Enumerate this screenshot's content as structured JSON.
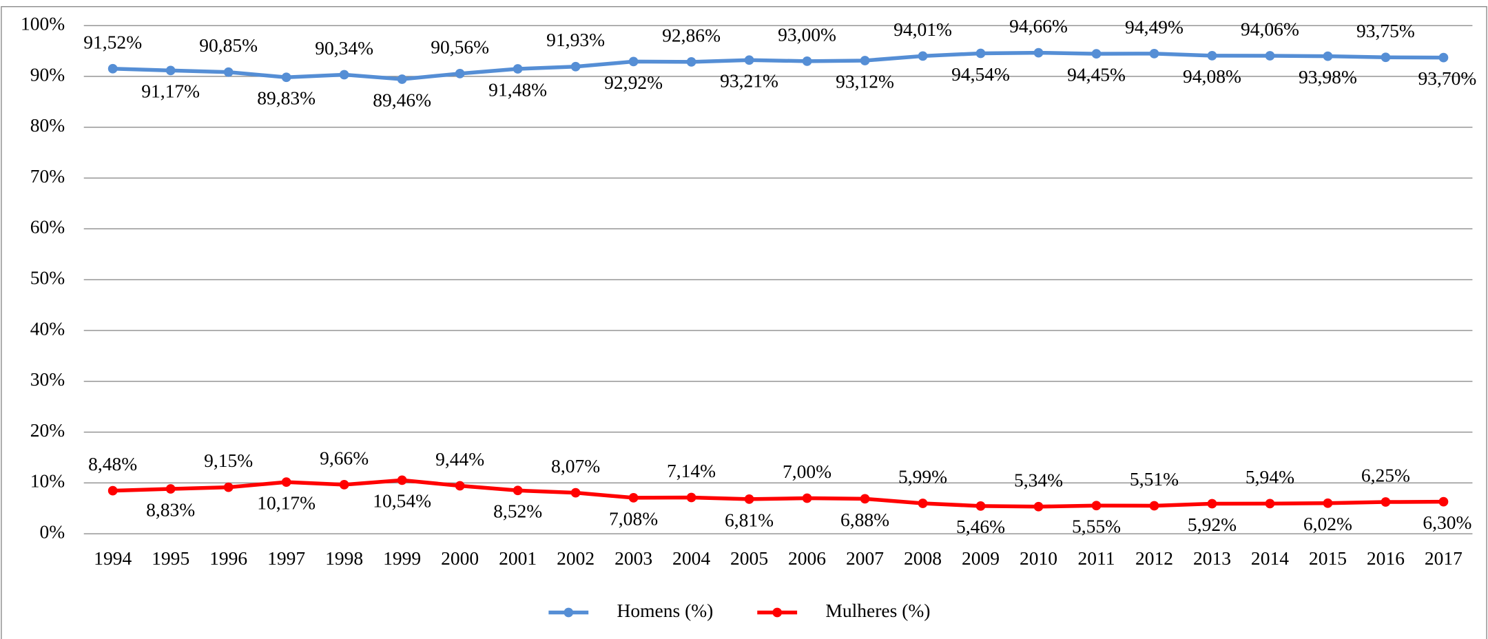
{
  "chart_data": {
    "type": "line",
    "categories": [
      "1994",
      "1995",
      "1996",
      "1997",
      "1998",
      "1999",
      "2000",
      "2001",
      "2002",
      "2003",
      "2004",
      "2005",
      "2006",
      "2007",
      "2008",
      "2009",
      "2010",
      "2011",
      "2012",
      "2013",
      "2014",
      "2015",
      "2016",
      "2017"
    ],
    "series": [
      {
        "name": "Homens (%)",
        "color": "#558ed5",
        "values": [
          91.52,
          91.17,
          90.85,
          89.83,
          90.34,
          89.46,
          90.56,
          91.48,
          91.93,
          92.92,
          92.86,
          93.21,
          93.0,
          93.12,
          94.01,
          94.54,
          94.66,
          94.45,
          94.49,
          94.08,
          94.06,
          93.98,
          93.75,
          93.7
        ],
        "value_labels": [
          "91,52%",
          "91,17%",
          "90,85%",
          "89,83%",
          "90,34%",
          "89,46%",
          "90,56%",
          "91,48%",
          "91,93%",
          "92,92%",
          "92,86%",
          "93,21%",
          "93,00%",
          "93,12%",
          "94,01%",
          "94,54%",
          "94,66%",
          "94,45%",
          "94,49%",
          "94,08%",
          "94,06%",
          "93,98%",
          "93,75%",
          "93,70%"
        ]
      },
      {
        "name": "Mulheres (%)",
        "color": "#ff0000",
        "values": [
          8.48,
          8.83,
          9.15,
          10.17,
          9.66,
          10.54,
          9.44,
          8.52,
          8.07,
          7.08,
          7.14,
          6.81,
          7.0,
          6.88,
          5.99,
          5.46,
          5.34,
          5.55,
          5.51,
          5.92,
          5.94,
          6.02,
          6.25,
          6.3
        ],
        "value_labels": [
          "8,48%",
          "8,83%",
          "9,15%",
          "10,17%",
          "9,66%",
          "10,54%",
          "9,44%",
          "8,52%",
          "8,07%",
          "7,08%",
          "7,14%",
          "6,81%",
          "7,00%",
          "6,88%",
          "5,99%",
          "5,46%",
          "5,34%",
          "5,55%",
          "5,51%",
          "5,92%",
          "5,94%",
          "6,02%",
          "6,25%",
          "6,30%"
        ]
      }
    ],
    "ylim": [
      0,
      100
    ],
    "yticks": [
      {
        "value": 0,
        "label": "0%"
      },
      {
        "value": 10,
        "label": "10%"
      },
      {
        "value": 20,
        "label": "20%"
      },
      {
        "value": 30,
        "label": "30%"
      },
      {
        "value": 40,
        "label": "40%"
      },
      {
        "value": 50,
        "label": "50%"
      },
      {
        "value": 60,
        "label": "60%"
      },
      {
        "value": 70,
        "label": "70%"
      },
      {
        "value": 80,
        "label": "80%"
      },
      {
        "value": 90,
        "label": "90%"
      },
      {
        "value": 100,
        "label": "100%"
      }
    ],
    "grid": true,
    "legend": "bottom"
  }
}
